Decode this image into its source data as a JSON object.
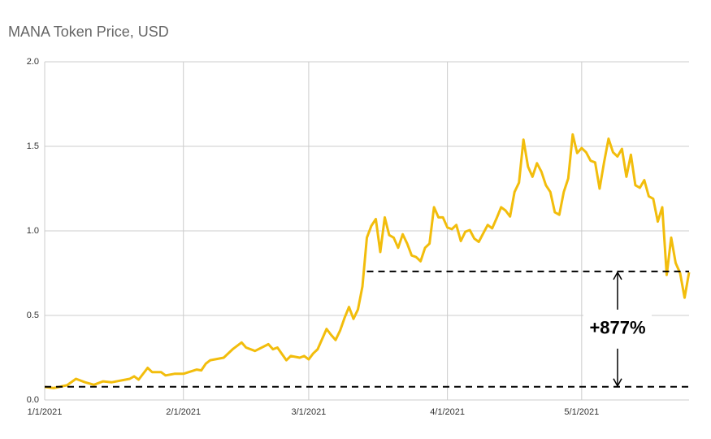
{
  "chart_data": {
    "type": "line",
    "title": "MANA Token Price, USD",
    "x": [
      "1/1/2021",
      "1/3/2021",
      "1/6/2021",
      "1/8/2021",
      "1/10/2021",
      "1/12/2021",
      "1/14/2021",
      "1/16/2021",
      "1/20/2021",
      "1/21/2021",
      "1/22/2021",
      "1/24/2021",
      "1/25/2021",
      "1/27/2021",
      "1/28/2021",
      "1/30/2021",
      "2/1/2021",
      "2/4/2021",
      "2/5/2021",
      "2/6/2021",
      "2/7/2021",
      "2/10/2021",
      "2/12/2021",
      "2/14/2021",
      "2/15/2021",
      "2/17/2021",
      "2/20/2021",
      "2/21/2021",
      "2/22/2021",
      "2/24/2021",
      "2/25/2021",
      "2/27/2021",
      "2/28/2021",
      "3/1/2021",
      "3/2/2021",
      "3/3/2021",
      "3/5/2021",
      "3/6/2021",
      "3/7/2021",
      "3/8/2021",
      "3/9/2021",
      "3/10/2021",
      "3/11/2021",
      "3/12/2021",
      "3/13/2021",
      "3/14/2021",
      "3/15/2021",
      "3/16/2021",
      "3/17/2021",
      "3/18/2021",
      "3/19/2021",
      "3/20/2021",
      "3/21/2021",
      "3/22/2021",
      "3/23/2021",
      "3/24/2021",
      "3/25/2021",
      "3/26/2021",
      "3/27/2021",
      "3/28/2021",
      "3/29/2021",
      "3/30/2021",
      "3/31/2021",
      "4/1/2021",
      "4/2/2021",
      "4/3/2021",
      "4/4/2021",
      "4/5/2021",
      "4/6/2021",
      "4/7/2021",
      "4/8/2021",
      "4/9/2021",
      "4/10/2021",
      "4/11/2021",
      "4/12/2021",
      "4/13/2021",
      "4/14/2021",
      "4/15/2021",
      "4/16/2021",
      "4/17/2021",
      "4/18/2021",
      "4/19/2021",
      "4/20/2021",
      "4/21/2021",
      "4/22/2021",
      "4/23/2021",
      "4/24/2021",
      "4/25/2021",
      "4/26/2021",
      "4/27/2021",
      "4/28/2021",
      "4/29/2021",
      "4/30/2021",
      "5/1/2021",
      "5/2/2021",
      "5/3/2021",
      "5/4/2021",
      "5/5/2021",
      "5/6/2021",
      "5/7/2021",
      "5/8/2021",
      "5/9/2021",
      "5/10/2021",
      "5/11/2021",
      "5/12/2021",
      "5/13/2021",
      "5/14/2021",
      "5/15/2021",
      "5/16/2021",
      "5/17/2021",
      "5/18/2021",
      "5/19/2021",
      "5/20/2021",
      "5/21/2021",
      "5/22/2021",
      "5/23/2021",
      "5/24/2021",
      "5/25/2021"
    ],
    "values": [
      0.077,
      0.07,
      0.087,
      0.125,
      0.105,
      0.09,
      0.11,
      0.105,
      0.125,
      0.14,
      0.12,
      0.19,
      0.165,
      0.165,
      0.145,
      0.155,
      0.155,
      0.18,
      0.175,
      0.215,
      0.235,
      0.25,
      0.3,
      0.34,
      0.31,
      0.29,
      0.33,
      0.3,
      0.31,
      0.235,
      0.26,
      0.25,
      0.26,
      0.24,
      0.275,
      0.3,
      0.42,
      0.385,
      0.355,
      0.41,
      0.485,
      0.55,
      0.48,
      0.535,
      0.67,
      0.96,
      1.03,
      1.07,
      0.875,
      1.08,
      0.975,
      0.96,
      0.9,
      0.98,
      0.925,
      0.855,
      0.845,
      0.82,
      0.9,
      0.925,
      1.14,
      1.08,
      1.08,
      1.02,
      1.01,
      1.035,
      0.94,
      0.995,
      1.005,
      0.955,
      0.935,
      0.985,
      1.035,
      1.015,
      1.075,
      1.14,
      1.12,
      1.085,
      1.23,
      1.285,
      1.54,
      1.38,
      1.32,
      1.4,
      1.35,
      1.27,
      1.23,
      1.11,
      1.095,
      1.23,
      1.31,
      1.57,
      1.46,
      1.49,
      1.465,
      1.415,
      1.405,
      1.25,
      1.405,
      1.545,
      1.465,
      1.44,
      1.485,
      1.32,
      1.45,
      1.27,
      1.255,
      1.3,
      1.205,
      1.19,
      1.055,
      1.14,
      0.74,
      0.96,
      0.81,
      0.75,
      0.605,
      0.755
    ],
    "color": "#f2bd0c",
    "xlim": [
      "1/1/2021",
      "5/25/2021"
    ],
    "xticks": [
      "1/1/2021",
      "2/1/2021",
      "3/1/2021",
      "4/1/2021",
      "5/1/2021"
    ],
    "ylim": [
      0,
      2
    ],
    "yticks": [
      {
        "value": 0,
        "label": "0.0"
      },
      {
        "value": 0.5,
        "label": "0.5"
      },
      {
        "value": 1,
        "label": "1.0"
      },
      {
        "value": 1.5,
        "label": "1.5"
      },
      {
        "value": 2,
        "label": "2.0"
      }
    ],
    "grid": true,
    "annotation": {
      "low": 0.078,
      "high": 0.76,
      "high_start": "3/14/2021",
      "label": "+877%"
    }
  }
}
